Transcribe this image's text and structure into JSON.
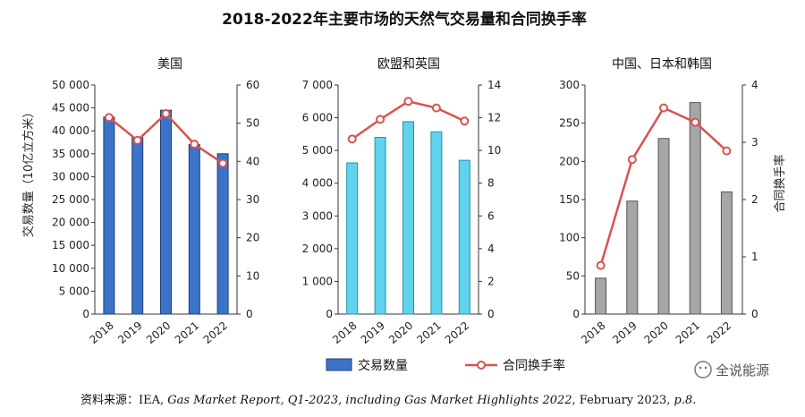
{
  "title": "2018-2022年主要市场的天然气交易量和合同换手率",
  "legend": {
    "bar_label": "交易数量",
    "line_label": "合同换手率"
  },
  "source": {
    "prefix": "资料来源：IEA, ",
    "italic": "Gas Market Report, Q1-2023, including Gas Market Highlights 2022",
    "suffix": ", February 2023, ",
    "page": "p.8."
  },
  "watermark": "全说能源",
  "left_axis_label": "交易数量（10亿立方米）",
  "right_axis_label": "合同换手率",
  "colors": {
    "us_bar": "#3b73c8",
    "eu_bar": "#5fd3ee",
    "asia_bar": "#a6a6a6",
    "line": "#d9534f",
    "axis": "#333333"
  },
  "chart_data": [
    {
      "type": "bar",
      "title": "美国",
      "categories": [
        "2018",
        "2019",
        "2020",
        "2021",
        "2022"
      ],
      "ylim": [
        0,
        50000
      ],
      "yticks": [
        0,
        5000,
        10000,
        15000,
        20000,
        25000,
        30000,
        35000,
        40000,
        45000,
        50000
      ],
      "ytick_labels": [
        "0",
        "5 000",
        "10 000",
        "15 000",
        "20 000",
        "25 000",
        "30 000",
        "35 000",
        "40 000",
        "45 000",
        "50 000"
      ],
      "y2lim": [
        0,
        60
      ],
      "y2ticks": [
        0,
        10,
        20,
        30,
        40,
        50,
        60
      ],
      "y2tick_labels": [
        "0",
        "10",
        "20",
        "30",
        "40",
        "50",
        "60"
      ],
      "series": [
        {
          "name": "交易数量",
          "type": "bar",
          "values": [
            43000,
            38500,
            44500,
            37000,
            35000
          ]
        },
        {
          "name": "合同换手率",
          "type": "line",
          "axis": "right",
          "values": [
            51.5,
            45.5,
            52.5,
            44.5,
            39.5
          ]
        }
      ]
    },
    {
      "type": "bar",
      "title": "欧盟和英国",
      "categories": [
        "2018",
        "2019",
        "2020",
        "2021",
        "2022"
      ],
      "ylim": [
        0,
        7000
      ],
      "yticks": [
        0,
        1000,
        2000,
        3000,
        4000,
        5000,
        6000,
        7000
      ],
      "ytick_labels": [
        "0",
        "1 000",
        "2 000",
        "3 000",
        "4 000",
        "5 000",
        "6 000",
        "7 000"
      ],
      "y2lim": [
        0,
        14
      ],
      "y2ticks": [
        0,
        2,
        4,
        6,
        8,
        10,
        12,
        14
      ],
      "y2tick_labels": [
        "0",
        "2",
        "4",
        "6",
        "8",
        "10",
        "12",
        "14"
      ],
      "series": [
        {
          "name": "交易数量",
          "type": "bar",
          "values": [
            4620,
            5400,
            5880,
            5570,
            4700
          ]
        },
        {
          "name": "合同换手率",
          "type": "line",
          "axis": "right",
          "values": [
            10.7,
            11.9,
            13.0,
            12.6,
            11.8
          ]
        }
      ]
    },
    {
      "type": "bar",
      "title": "中国、日本和韩国",
      "categories": [
        "2018",
        "2019",
        "2020",
        "2021",
        "2022"
      ],
      "ylim": [
        0,
        300
      ],
      "yticks": [
        0,
        50,
        100,
        150,
        200,
        250,
        300
      ],
      "ytick_labels": [
        "0",
        "50",
        "100",
        "150",
        "200",
        "250",
        "300"
      ],
      "y2lim": [
        0,
        4
      ],
      "y2ticks": [
        0,
        1,
        2,
        3,
        4
      ],
      "y2tick_labels": [
        "0",
        "1",
        "2",
        "3",
        "4"
      ],
      "series": [
        {
          "name": "交易数量",
          "type": "bar",
          "values": [
            47,
            148,
            230,
            277,
            160
          ]
        },
        {
          "name": "合同换手率",
          "type": "line",
          "axis": "right",
          "values": [
            0.85,
            2.7,
            3.6,
            3.35,
            2.85
          ]
        }
      ]
    }
  ]
}
